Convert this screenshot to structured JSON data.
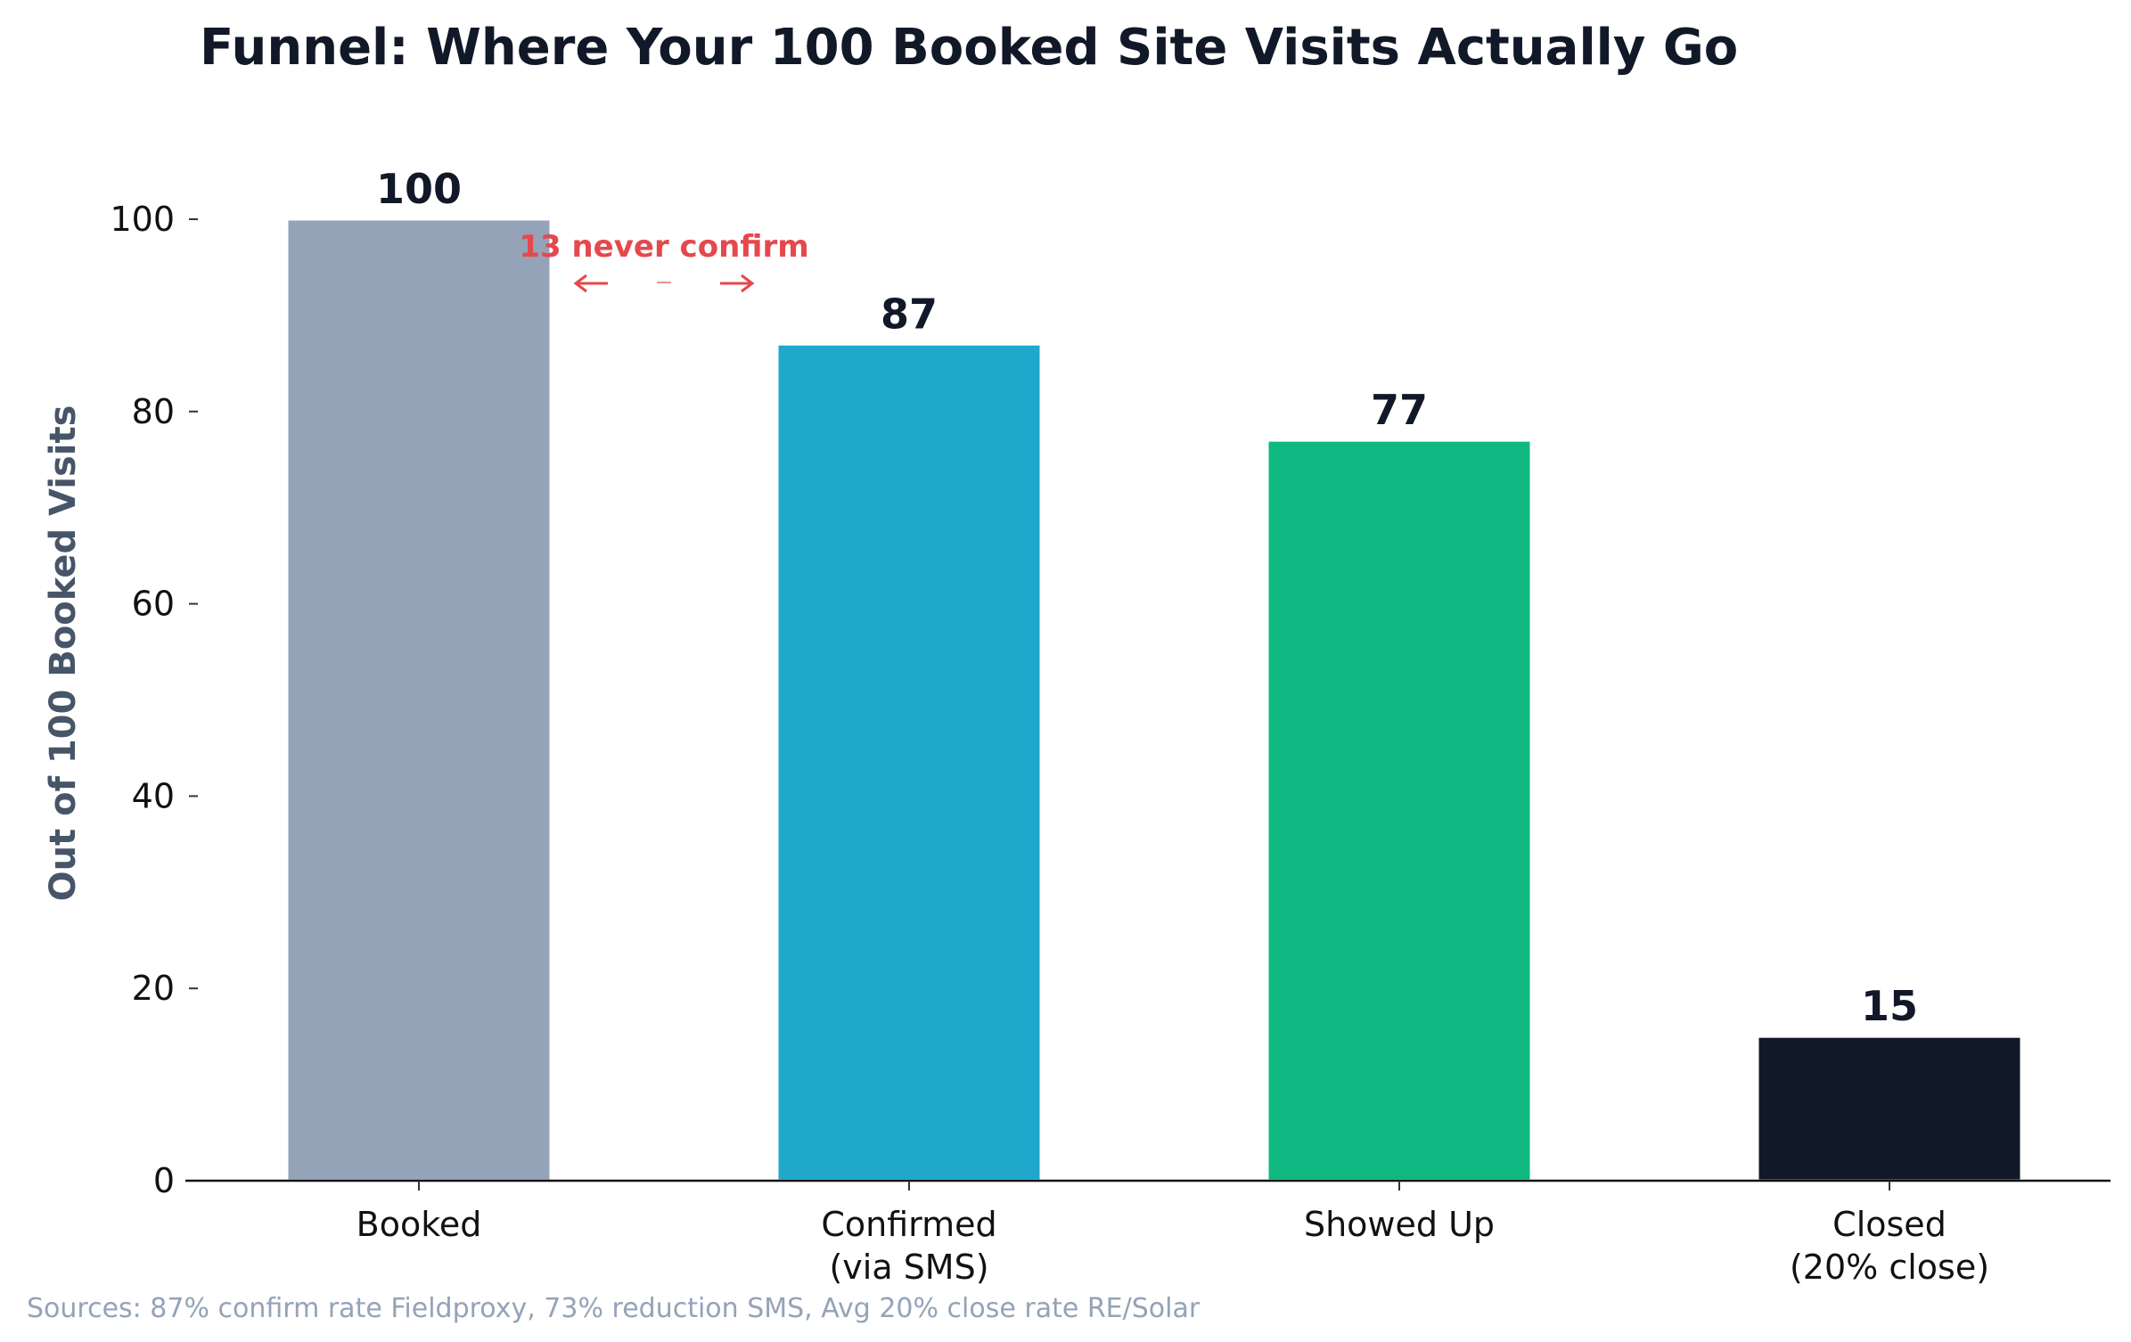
{
  "chart_data": {
    "type": "bar",
    "title": "Funnel: Where Your 100 Booked Site Visits Actually Go",
    "xlabel": "",
    "ylabel": "Out of 100 Booked Visits",
    "ylim": [
      0,
      100
    ],
    "yticks": [
      0,
      20,
      40,
      60,
      80,
      100
    ],
    "categories": [
      [
        "Booked"
      ],
      [
        "Confirmed",
        "(via SMS)"
      ],
      [
        "Showed Up"
      ],
      [
        "Closed",
        "(20% close)"
      ]
    ],
    "values": [
      100,
      87,
      77,
      15
    ],
    "value_labels": [
      "100",
      "87",
      "77",
      "15"
    ],
    "colors": [
      "#94a3b8",
      "#1fa8cc",
      "#10b981",
      "#111827"
    ],
    "grid": false,
    "annotation": {
      "text": "13 never confirm",
      "color": "#e5484d",
      "between": [
        0,
        1
      ]
    },
    "source": "Sources: 87% confirm rate Fieldproxy, 73% reduction SMS, Avg 20% close rate RE/Solar"
  }
}
